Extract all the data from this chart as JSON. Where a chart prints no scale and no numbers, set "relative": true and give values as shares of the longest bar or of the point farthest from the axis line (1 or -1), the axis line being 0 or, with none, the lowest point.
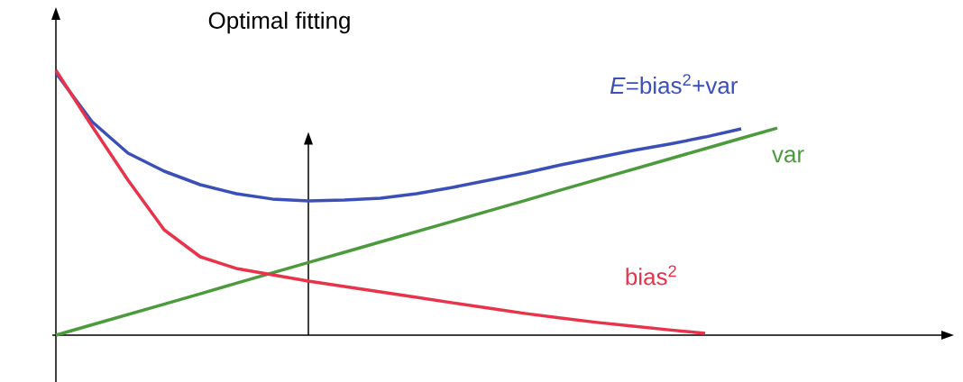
{
  "chart_data": {
    "type": "line",
    "relative": true,
    "categories": [
      null,
      null,
      null,
      null,
      null,
      null,
      null,
      null,
      null,
      null,
      null,
      null,
      null,
      null,
      null,
      null,
      null,
      null,
      null,
      null,
      null
    ],
    "series": [
      {
        "name": "*E*=bias$^{2}$+var",
        "color": "#3b4fb8",
        "values": [
          0.99,
          0.806,
          0.687,
          0.619,
          0.568,
          0.534,
          0.514,
          0.507,
          0.51,
          0.517,
          0.534,
          0.558,
          0.585,
          0.612,
          0.643,
          0.67,
          0.697,
          0.721,
          0.748,
          0.779,
          null
        ]
      },
      {
        "name": "var",
        "color": "#4b9a3c",
        "values": [
          0,
          0.039,
          0.078,
          0.117,
          0.156,
          0.196,
          0.235,
          0.274,
          0.313,
          0.352,
          0.391,
          0.43,
          0.469,
          0.508,
          0.548,
          0.587,
          0.626,
          0.665,
          0.704,
          0.743,
          0.782
        ]
      },
      {
        "name": "bias$^{2}$",
        "color": "#e8334a",
        "values": [
          1.0,
          0.789,
          0.585,
          0.398,
          0.296,
          0.252,
          0.228,
          0.204,
          0.184,
          0.163,
          0.143,
          0.122,
          0.102,
          0.082,
          0.065,
          0.048,
          0.034,
          0.02,
          0.007,
          null,
          null
        ]
      }
    ],
    "annotations": [
      "Optimal fitting"
    ],
    "marker": "none",
    "line_style": "solid"
  }
}
